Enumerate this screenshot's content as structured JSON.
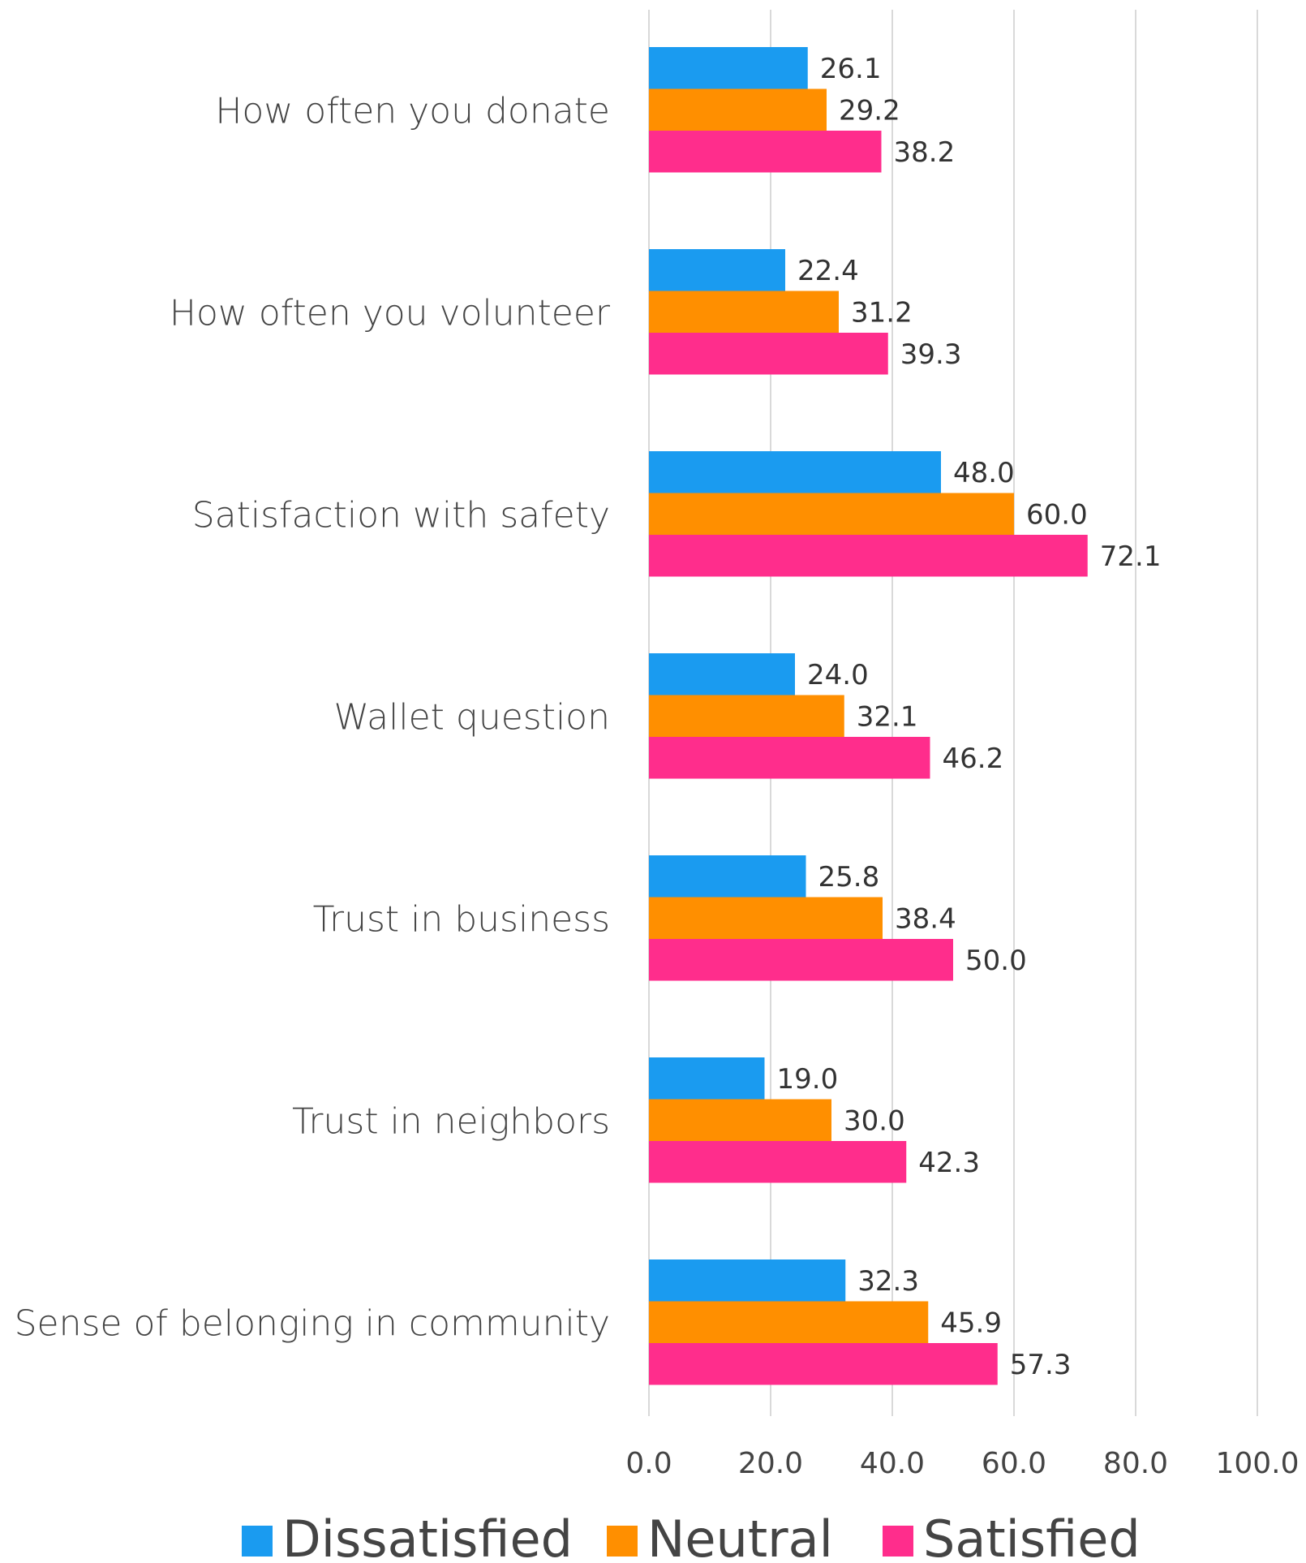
{
  "chart_data": {
    "type": "bar",
    "orientation": "horizontal",
    "categories": [
      "How often you donate",
      "How often you volunteer",
      "Satisfaction with safety",
      "Wallet question",
      "Trust in business",
      "Trust in neighbors",
      "Sense of belonging in community"
    ],
    "series": [
      {
        "name": "Dissatisfied",
        "color": "#1a9bf0",
        "values": [
          26.1,
          22.4,
          48.0,
          24.0,
          25.8,
          19.0,
          32.3
        ]
      },
      {
        "name": "Neutral",
        "color": "#ff8f00",
        "values": [
          29.2,
          31.2,
          60.0,
          32.1,
          38.4,
          30.0,
          45.9
        ]
      },
      {
        "name": "Satisfied",
        "color": "#ff2d8c",
        "values": [
          38.2,
          39.3,
          72.1,
          46.2,
          50.0,
          42.3,
          57.3
        ]
      }
    ],
    "xlim": [
      0,
      100
    ],
    "ticks": [
      "0.0",
      "20.0",
      "40.0",
      "60.0",
      "80.0",
      "100.0"
    ],
    "grid": true,
    "legend_position": "bottom",
    "data_labels": true
  }
}
